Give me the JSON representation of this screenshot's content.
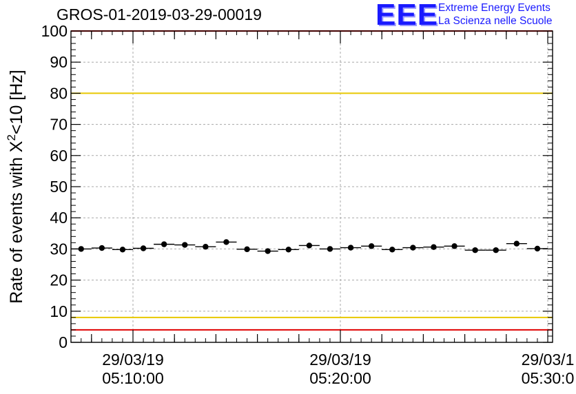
{
  "title": "GROS-01-2019-03-29-00019",
  "logo": {
    "mark": "EEE",
    "line1": "Extreme Energy Events",
    "line2": "La Scienza nelle Scuole",
    "color": "#1a1aff"
  },
  "chart_data": {
    "type": "scatter",
    "title": "GROS-01-2019-03-29-00019",
    "xlabel": "",
    "ylabel_main": "Rate of events with X",
    "ylabel_sup": "2",
    "ylabel_tail": "<10 [Hz]",
    "ylim": [
      0,
      100
    ],
    "xlim_minutes": [
      0,
      23
    ],
    "y_ticks": [
      0,
      10,
      20,
      30,
      40,
      50,
      60,
      70,
      80,
      90,
      100
    ],
    "x_tick_labels": [
      {
        "date": "29/03/19",
        "time": "05:10:00",
        "minute": 3
      },
      {
        "date": "29/03/19",
        "time": "05:20:00",
        "minute": 13
      },
      {
        "date": "29/03/1",
        "time": "05:30:0",
        "minute": 23
      }
    ],
    "grid": true,
    "reference_lines": [
      {
        "y": 80,
        "color": "#e8c800"
      },
      {
        "y": 8,
        "color": "#e8c800"
      },
      {
        "y": 100,
        "color": "#e00000"
      },
      {
        "y": 4,
        "color": "#e00000"
      }
    ],
    "series": [
      {
        "marker_color": "#000000",
        "bin_width_minutes": 1.0,
        "x_minutes": [
          0.5,
          1.5,
          2.5,
          3.5,
          4.5,
          5.5,
          6.5,
          7.5,
          8.5,
          9.5,
          10.5,
          11.5,
          12.5,
          13.5,
          14.5,
          15.5,
          16.5,
          17.5,
          18.5,
          19.5,
          20.5,
          21.5,
          22.5
        ],
        "values": [
          30.0,
          30.3,
          29.8,
          30.2,
          31.5,
          31.3,
          30.7,
          32.2,
          29.9,
          29.3,
          29.8,
          31.1,
          30.0,
          30.4,
          30.9,
          29.8,
          30.4,
          30.6,
          30.9,
          29.6,
          29.6,
          31.7,
          30.1
        ]
      }
    ]
  }
}
